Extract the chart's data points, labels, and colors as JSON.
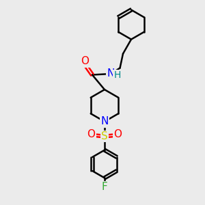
{
  "bg_color": "#ebebeb",
  "line_color": "#000000",
  "bond_width": 1.8,
  "atom_colors": {
    "O": "#ff0000",
    "N_amide": "#0000ff",
    "N_pip": "#0000ff",
    "S": "#cccc00",
    "F": "#33aa33",
    "H": "#008b8b",
    "C": "#000000"
  },
  "font_size": 10,
  "figsize": [
    3.0,
    3.0
  ],
  "dpi": 100
}
